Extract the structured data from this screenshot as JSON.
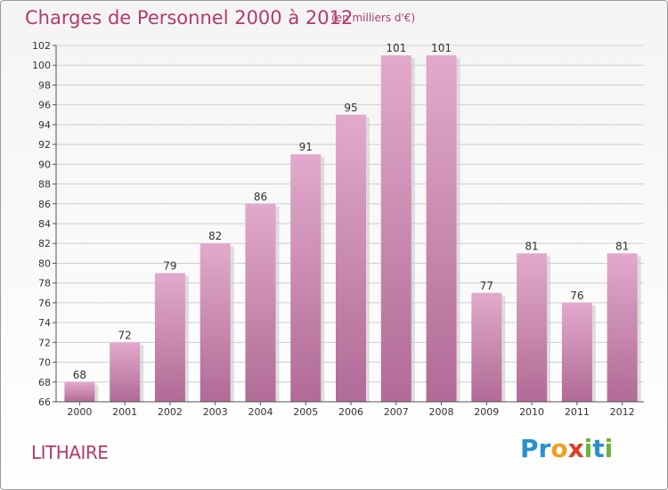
{
  "header": {
    "title": "Charges de Personnel 2000 à 2012",
    "subtitle": "(en milliers d'€)"
  },
  "footer": {
    "commune": "LITHAIRE",
    "logo_text": "Proxiti",
    "logo_letters": [
      {
        "ch": "P",
        "color": "#2a8fd0"
      },
      {
        "ch": "r",
        "color": "#2a8fd0"
      },
      {
        "ch": "o",
        "color": "#f0a020"
      },
      {
        "ch": "x",
        "color": "#e03a2a"
      },
      {
        "ch": "i",
        "color": "#6bb33a"
      },
      {
        "ch": "t",
        "color": "#2a8fd0"
      },
      {
        "ch": "i",
        "color": "#6bb33a"
      }
    ]
  },
  "colors": {
    "bar_top": "#e3a9cc",
    "bar_bottom": "#b06b96",
    "bar_shadow": "#c9c9c9",
    "grid": "#cfcfcf",
    "text": "#333333",
    "accent": "#b23a6c"
  },
  "chart_data": {
    "type": "bar",
    "categories": [
      "2000",
      "2001",
      "2002",
      "2003",
      "2004",
      "2005",
      "2006",
      "2007",
      "2008",
      "2009",
      "2010",
      "2011",
      "2012"
    ],
    "values": [
      68,
      72,
      79,
      82,
      86,
      91,
      95,
      101,
      101,
      77,
      81,
      76,
      81
    ],
    "data_labels": [
      "68",
      "72",
      "79",
      "82",
      "86",
      "91",
      "95",
      "101",
      "101",
      "77",
      "81",
      "76",
      "81"
    ],
    "ylim": [
      66,
      102
    ],
    "yticks": [
      66,
      68,
      70,
      72,
      74,
      76,
      78,
      80,
      82,
      84,
      86,
      88,
      90,
      92,
      94,
      96,
      98,
      100,
      102
    ],
    "grid": true,
    "legend": "none"
  }
}
